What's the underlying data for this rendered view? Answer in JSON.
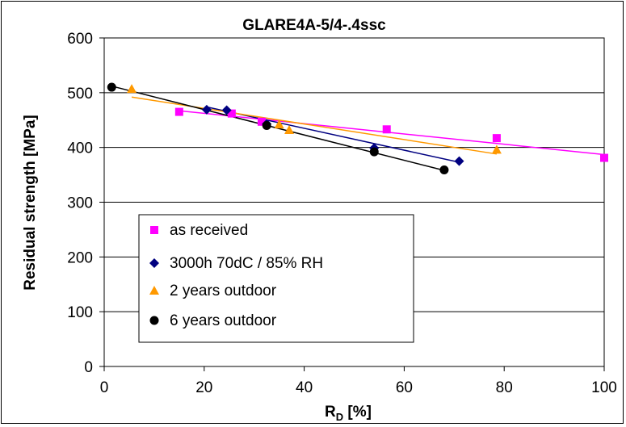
{
  "chart_data": {
    "type": "scatter",
    "title": "GLARE4A-5/4-.4ssc",
    "xlabel": "R",
    "xlabel_sub": "D",
    "xlabel_unit": " [%]",
    "ylabel": "Residual strength [MPa]",
    "xlim": [
      0,
      100
    ],
    "ylim": [
      0,
      600
    ],
    "xticks": [
      "0",
      "20",
      "40",
      "60",
      "80",
      "100"
    ],
    "yticks": [
      "0",
      "100",
      "200",
      "300",
      "400",
      "500",
      "600"
    ],
    "grid": "horizontal",
    "legend_position": "bottom-left",
    "series": [
      {
        "name": "as received",
        "marker": "square",
        "color": "#FF00FF",
        "x": [
          15,
          25.5,
          31.5,
          56.5,
          78.5,
          100
        ],
        "y": [
          465,
          462,
          447,
          433,
          417,
          381
        ],
        "trendline": [
          [
            15,
            467
          ],
          [
            100,
            387
          ]
        ]
      },
      {
        "name": "3000h 70dC / 85% RH",
        "marker": "diamond",
        "color": "#000080",
        "x": [
          20.5,
          24.5,
          32.5,
          54,
          71
        ],
        "y": [
          469,
          468,
          443,
          399,
          375
        ],
        "trendline": [
          [
            20.5,
            474
          ],
          [
            71,
            373
          ]
        ]
      },
      {
        "name": "2 years outdoor",
        "marker": "triangle",
        "color": "#FF9900",
        "x": [
          5.5,
          35,
          37,
          78.5
        ],
        "y": [
          507,
          442,
          432,
          396
        ],
        "trendline": [
          [
            5.5,
            492
          ],
          [
            78.5,
            388
          ]
        ]
      },
      {
        "name": "6 years outdoor",
        "marker": "circle",
        "color": "#000000",
        "x": [
          1.5,
          32.5,
          54,
          68
        ],
        "y": [
          510,
          440,
          392,
          359
        ],
        "trendline": [
          [
            1.5,
            512
          ],
          [
            68,
            358
          ]
        ]
      }
    ]
  }
}
